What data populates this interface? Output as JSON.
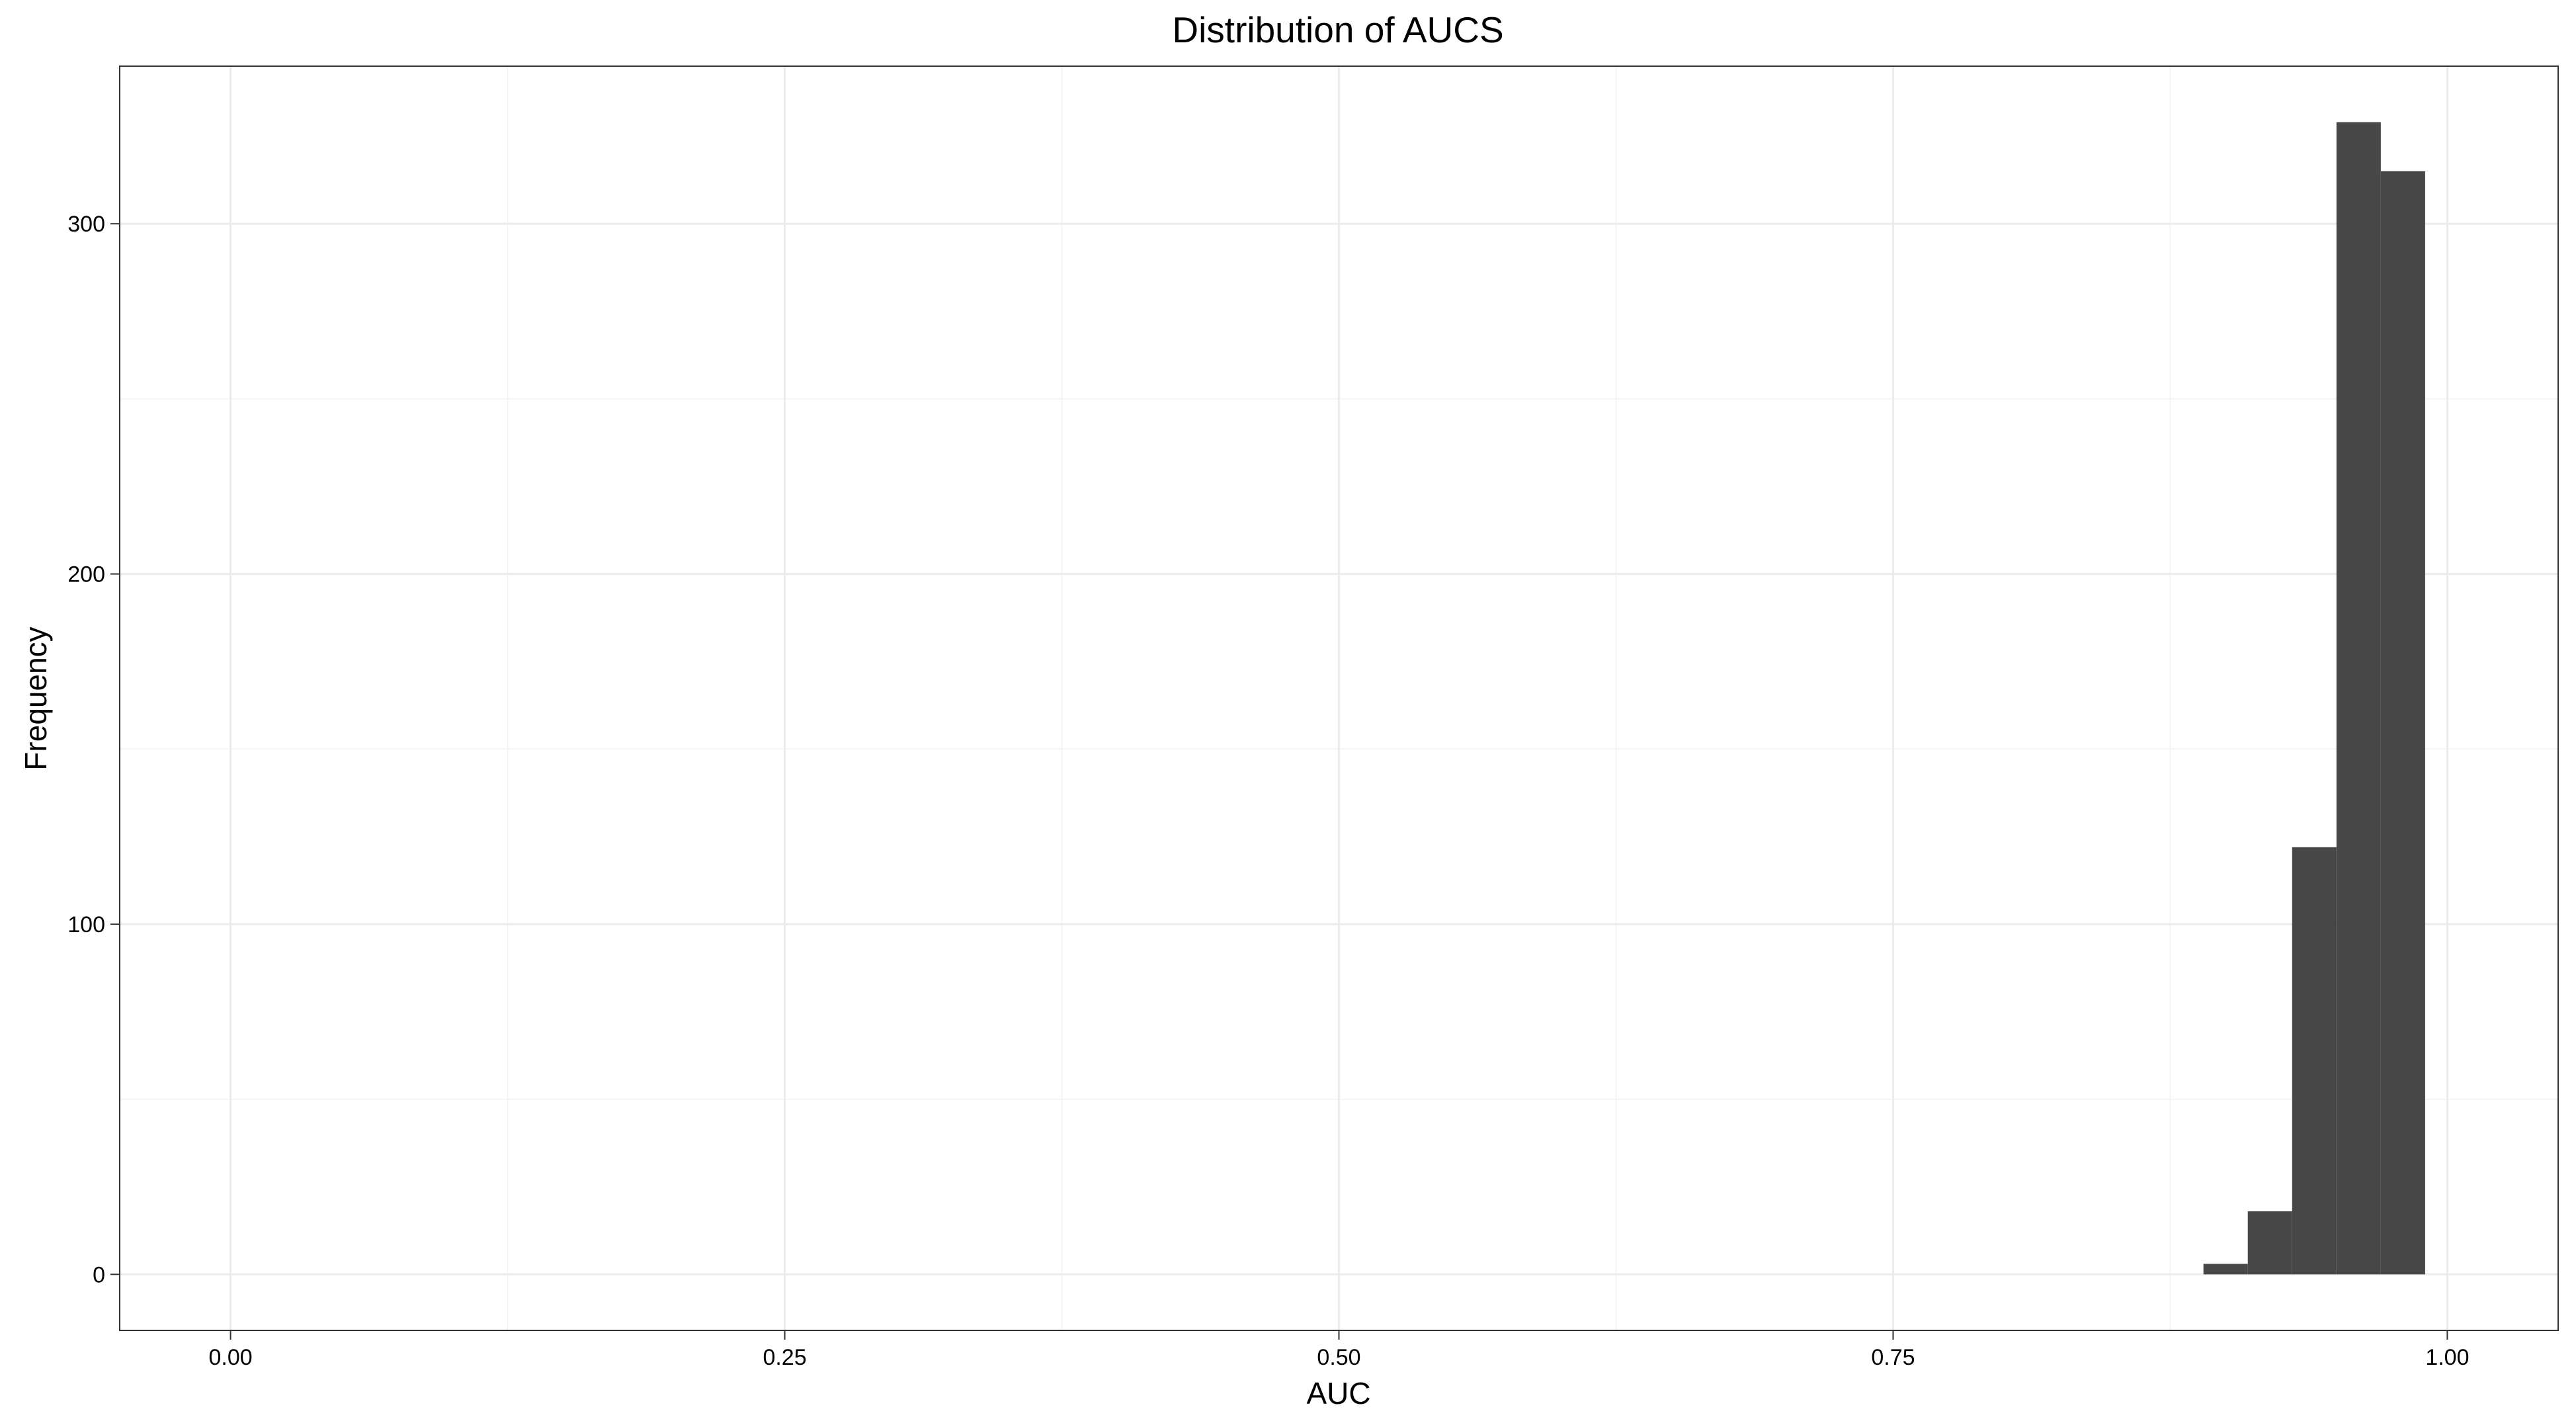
{
  "chart_data": {
    "type": "histogram",
    "title": "Distribution of AUCS",
    "xlabel": "AUC",
    "ylabel": "Frequency",
    "xlim": [
      -0.05,
      1.05
    ],
    "ylim": [
      -16,
      345
    ],
    "x_ticks": [
      0,
      0.25,
      0.5,
      0.75,
      1
    ],
    "x_tick_labels": [
      "0.00",
      "0.25",
      "0.50",
      "0.75",
      "1.00"
    ],
    "x_minor_ticks": [
      0.125,
      0.375,
      0.625,
      0.875
    ],
    "y_ticks": [
      0,
      100,
      200,
      300
    ],
    "y_tick_labels": [
      "0",
      "100",
      "200",
      "300"
    ],
    "y_minor_ticks": [
      50,
      150,
      250
    ],
    "grid": true,
    "bins": [
      {
        "x0": 0.89,
        "x1": 0.91,
        "count": 3
      },
      {
        "x0": 0.91,
        "x1": 0.93,
        "count": 18
      },
      {
        "x0": 0.93,
        "x1": 0.95,
        "count": 122
      },
      {
        "x0": 0.95,
        "x1": 0.97,
        "count": 329
      },
      {
        "x0": 0.97,
        "x1": 0.99,
        "count": 315
      }
    ],
    "bar_color": "#474747"
  }
}
